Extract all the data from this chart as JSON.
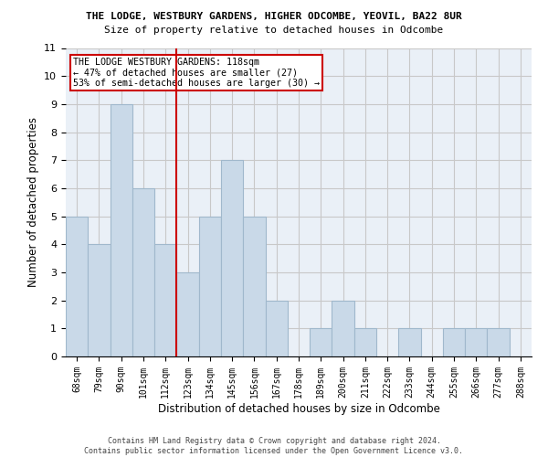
{
  "title1": "THE LODGE, WESTBURY GARDENS, HIGHER ODCOMBE, YEOVIL, BA22 8UR",
  "title2": "Size of property relative to detached houses in Odcombe",
  "xlabel": "Distribution of detached houses by size in Odcombe",
  "ylabel": "Number of detached properties",
  "footer1": "Contains HM Land Registry data © Crown copyright and database right 2024.",
  "footer2": "Contains public sector information licensed under the Open Government Licence v3.0.",
  "categories": [
    "68sqm",
    "79sqm",
    "90sqm",
    "101sqm",
    "112sqm",
    "123sqm",
    "134sqm",
    "145sqm",
    "156sqm",
    "167sqm",
    "178sqm",
    "189sqm",
    "200sqm",
    "211sqm",
    "222sqm",
    "233sqm",
    "244sqm",
    "255sqm",
    "266sqm",
    "277sqm",
    "288sqm"
  ],
  "values": [
    5,
    4,
    9,
    6,
    4,
    3,
    5,
    7,
    5,
    2,
    0,
    1,
    2,
    1,
    0,
    1,
    0,
    1,
    1,
    1,
    0
  ],
  "bar_color": "#c9d9e8",
  "bar_edge_color": "#a0b8cc",
  "grid_color": "#c8c8c8",
  "background_color": "#eaf0f7",
  "vline_x": 4.5,
  "vline_color": "#cc0000",
  "annotation_title": "THE LODGE WESTBURY GARDENS: 118sqm",
  "annotation_line1": "← 47% of detached houses are smaller (27)",
  "annotation_line2": "53% of semi-detached houses are larger (30) →",
  "annotation_box_color": "#cc0000",
  "ylim": [
    0,
    11
  ],
  "yticks": [
    0,
    1,
    2,
    3,
    4,
    5,
    6,
    7,
    8,
    9,
    10,
    11
  ]
}
